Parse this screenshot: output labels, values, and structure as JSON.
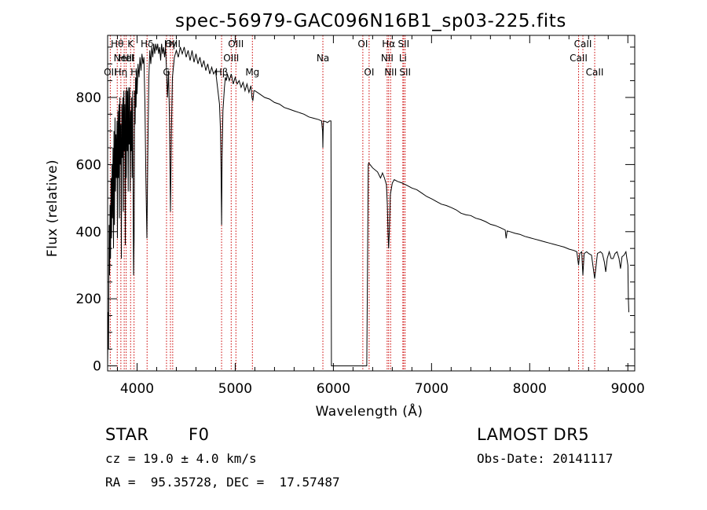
{
  "chart_data": {
    "type": "line",
    "title": "spec-56979-GAC096N16B1_sp03-225.fits",
    "xlabel": "Wavelength (Å)",
    "ylabel": "Flux (relative)",
    "xlim": [
      3700,
      9070
    ],
    "ylim": [
      -15,
      985
    ],
    "xticks": [
      4000,
      5000,
      6000,
      7000,
      8000,
      9000
    ],
    "yticks": [
      0,
      200,
      400,
      600,
      800
    ],
    "x_minor_step": 200,
    "y_minor_step": 50,
    "grid": false,
    "series": [
      {
        "values": [
          [
            3700,
            0
          ],
          [
            3705,
            160
          ],
          [
            3710,
            50
          ],
          [
            3715,
            420
          ],
          [
            3720,
            270
          ],
          [
            3725,
            480
          ],
          [
            3730,
            320
          ],
          [
            3735,
            560
          ],
          [
            3740,
            380
          ],
          [
            3745,
            600
          ],
          [
            3750,
            440
          ],
          [
            3755,
            650
          ],
          [
            3760,
            350
          ],
          [
            3765,
            700
          ],
          [
            3770,
            420
          ],
          [
            3775,
            740
          ],
          [
            3780,
            520
          ],
          [
            3785,
            690
          ],
          [
            3790,
            560
          ],
          [
            3795,
            730
          ],
          [
            3800,
            380
          ],
          [
            3805,
            760
          ],
          [
            3810,
            560
          ],
          [
            3815,
            780
          ],
          [
            3820,
            440
          ],
          [
            3825,
            800
          ],
          [
            3830,
            600
          ],
          [
            3835,
            720
          ],
          [
            3840,
            320
          ],
          [
            3845,
            780
          ],
          [
            3850,
            620
          ],
          [
            3855,
            800
          ],
          [
            3860,
            460
          ],
          [
            3865,
            820
          ],
          [
            3870,
            640
          ],
          [
            3875,
            780
          ],
          [
            3880,
            360
          ],
          [
            3885,
            820
          ],
          [
            3890,
            560
          ],
          [
            3895,
            830
          ],
          [
            3900,
            640
          ],
          [
            3905,
            820
          ],
          [
            3910,
            520
          ],
          [
            3915,
            830
          ],
          [
            3920,
            660
          ],
          [
            3925,
            830
          ],
          [
            3930,
            520
          ],
          [
            3935,
            760
          ],
          [
            3940,
            640
          ],
          [
            3945,
            800
          ],
          [
            3950,
            560
          ],
          [
            3955,
            820
          ],
          [
            3960,
            500
          ],
          [
            3965,
            270
          ],
          [
            3970,
            380
          ],
          [
            3975,
            820
          ],
          [
            3980,
            720
          ],
          [
            3985,
            860
          ],
          [
            3990,
            770
          ],
          [
            3995,
            880
          ],
          [
            4000,
            810
          ],
          [
            4010,
            900
          ],
          [
            4020,
            860
          ],
          [
            4030,
            920
          ],
          [
            4040,
            880
          ],
          [
            4050,
            930
          ],
          [
            4060,
            900
          ],
          [
            4070,
            920
          ],
          [
            4080,
            780
          ],
          [
            4090,
            560
          ],
          [
            4100,
            380
          ],
          [
            4110,
            640
          ],
          [
            4120,
            860
          ],
          [
            4130,
            940
          ],
          [
            4140,
            900
          ],
          [
            4150,
            950
          ],
          [
            4160,
            920
          ],
          [
            4170,
            960
          ],
          [
            4180,
            930
          ],
          [
            4190,
            960
          ],
          [
            4200,
            940
          ],
          [
            4210,
            960
          ],
          [
            4220,
            930
          ],
          [
            4230,
            950
          ],
          [
            4240,
            910
          ],
          [
            4250,
            960
          ],
          [
            4260,
            930
          ],
          [
            4270,
            950
          ],
          [
            4280,
            920
          ],
          [
            4290,
            950
          ],
          [
            4300,
            880
          ],
          [
            4310,
            800
          ],
          [
            4320,
            880
          ],
          [
            4330,
            740
          ],
          [
            4340,
            460
          ],
          [
            4350,
            700
          ],
          [
            4360,
            860
          ],
          [
            4380,
            920
          ],
          [
            4400,
            940
          ],
          [
            4420,
            920
          ],
          [
            4440,
            950
          ],
          [
            4460,
            930
          ],
          [
            4480,
            950
          ],
          [
            4500,
            920
          ],
          [
            4520,
            940
          ],
          [
            4540,
            910
          ],
          [
            4560,
            940
          ],
          [
            4580,
            905
          ],
          [
            4600,
            930
          ],
          [
            4620,
            900
          ],
          [
            4640,
            920
          ],
          [
            4660,
            890
          ],
          [
            4680,
            910
          ],
          [
            4700,
            880
          ],
          [
            4720,
            900
          ],
          [
            4740,
            870
          ],
          [
            4760,
            890
          ],
          [
            4780,
            870
          ],
          [
            4800,
            880
          ],
          [
            4820,
            830
          ],
          [
            4840,
            780
          ],
          [
            4850,
            700
          ],
          [
            4855,
            600
          ],
          [
            4861,
            420
          ],
          [
            4866,
            620
          ],
          [
            4875,
            760
          ],
          [
            4890,
            830
          ],
          [
            4900,
            860
          ],
          [
            4910,
            850
          ],
          [
            4920,
            870
          ],
          [
            4940,
            850
          ],
          [
            4960,
            870
          ],
          [
            4980,
            840
          ],
          [
            5000,
            860
          ],
          [
            5020,
            840
          ],
          [
            5040,
            850
          ],
          [
            5060,
            830
          ],
          [
            5080,
            845
          ],
          [
            5100,
            820
          ],
          [
            5120,
            840
          ],
          [
            5140,
            815
          ],
          [
            5160,
            835
          ],
          [
            5170,
            800
          ],
          [
            5180,
            790
          ],
          [
            5190,
            820
          ],
          [
            5200,
            820
          ],
          [
            5250,
            810
          ],
          [
            5300,
            800
          ],
          [
            5350,
            795
          ],
          [
            5400,
            785
          ],
          [
            5450,
            780
          ],
          [
            5500,
            770
          ],
          [
            5550,
            765
          ],
          [
            5600,
            760
          ],
          [
            5650,
            755
          ],
          [
            5700,
            750
          ],
          [
            5750,
            742
          ],
          [
            5800,
            738
          ],
          [
            5850,
            734
          ],
          [
            5880,
            730
          ],
          [
            5890,
            700
          ],
          [
            5893,
            650
          ],
          [
            5896,
            700
          ],
          [
            5900,
            730
          ],
          [
            5920,
            728
          ],
          [
            5940,
            725
          ],
          [
            5960,
            730
          ],
          [
            5975,
            730
          ],
          [
            5980,
            0
          ],
          [
            6340,
            0
          ],
          [
            6355,
            600
          ],
          [
            6360,
            605
          ],
          [
            6400,
            590
          ],
          [
            6450,
            578
          ],
          [
            6480,
            560
          ],
          [
            6500,
            575
          ],
          [
            6520,
            560
          ],
          [
            6540,
            540
          ],
          [
            6550,
            480
          ],
          [
            6556,
            400
          ],
          [
            6563,
            350
          ],
          [
            6570,
            400
          ],
          [
            6580,
            510
          ],
          [
            6600,
            545
          ],
          [
            6620,
            555
          ],
          [
            6650,
            550
          ],
          [
            6700,
            545
          ],
          [
            6750,
            538
          ],
          [
            6800,
            530
          ],
          [
            6850,
            525
          ],
          [
            6900,
            515
          ],
          [
            6950,
            505
          ],
          [
            7000,
            498
          ],
          [
            7050,
            490
          ],
          [
            7100,
            482
          ],
          [
            7150,
            478
          ],
          [
            7200,
            472
          ],
          [
            7250,
            465
          ],
          [
            7300,
            455
          ],
          [
            7350,
            450
          ],
          [
            7400,
            448
          ],
          [
            7450,
            440
          ],
          [
            7500,
            436
          ],
          [
            7550,
            430
          ],
          [
            7600,
            422
          ],
          [
            7650,
            418
          ],
          [
            7700,
            412
          ],
          [
            7750,
            405
          ],
          [
            7760,
            380
          ],
          [
            7770,
            402
          ],
          [
            7800,
            400
          ],
          [
            7850,
            395
          ],
          [
            7900,
            392
          ],
          [
            7950,
            386
          ],
          [
            8000,
            382
          ],
          [
            8050,
            378
          ],
          [
            8100,
            374
          ],
          [
            8150,
            370
          ],
          [
            8200,
            366
          ],
          [
            8250,
            362
          ],
          [
            8300,
            358
          ],
          [
            8350,
            354
          ],
          [
            8400,
            348
          ],
          [
            8450,
            344
          ],
          [
            8480,
            340
          ],
          [
            8498,
            300
          ],
          [
            8510,
            335
          ],
          [
            8530,
            340
          ],
          [
            8542,
            270
          ],
          [
            8555,
            335
          ],
          [
            8580,
            340
          ],
          [
            8600,
            335
          ],
          [
            8630,
            330
          ],
          [
            8662,
            260
          ],
          [
            8690,
            335
          ],
          [
            8720,
            340
          ],
          [
            8740,
            335
          ],
          [
            8760,
            310
          ],
          [
            8775,
            280
          ],
          [
            8790,
            320
          ],
          [
            8810,
            340
          ],
          [
            8830,
            320
          ],
          [
            8850,
            320
          ],
          [
            8870,
            335
          ],
          [
            8890,
            340
          ],
          [
            8910,
            320
          ],
          [
            8925,
            290
          ],
          [
            8940,
            325
          ],
          [
            8960,
            330
          ],
          [
            8980,
            340
          ],
          [
            8990,
            320
          ],
          [
            9000,
            300
          ],
          [
            9005,
            200
          ],
          [
            9010,
            160
          ]
        ]
      }
    ],
    "line_color": "#000000",
    "marker_color": "#cc0000",
    "lines": [
      {
        "x": 3727,
        "labels": [
          "OII"
        ],
        "rows": [
          2
        ]
      },
      {
        "x": 3798,
        "labels": [
          "Hθ"
        ],
        "rows": [
          0
        ]
      },
      {
        "x": 3835,
        "labels": [
          "Hη"
        ],
        "rows": [
          2
        ]
      },
      {
        "x": 3869,
        "labels": [
          "NeIII"
        ],
        "rows": [
          1
        ]
      },
      {
        "x": 3889,
        "labels": [
          "HeI"
        ],
        "rows": [
          1
        ]
      },
      {
        "x": 3934,
        "labels": [
          "K"
        ],
        "rows": [
          0
        ]
      },
      {
        "x": 3969,
        "labels": [
          "H"
        ],
        "rows": [
          2
        ]
      },
      {
        "x": 4102,
        "labels": [
          "Hδ"
        ],
        "rows": [
          0
        ]
      },
      {
        "x": 4300,
        "labels": [
          "G"
        ],
        "rows": [
          2
        ]
      },
      {
        "x": 4340,
        "labels": [
          "Hγ"
        ],
        "rows": [
          0
        ]
      },
      {
        "x": 4363,
        "labels": [
          "OIII"
        ],
        "rows": [
          0
        ]
      },
      {
        "x": 4861,
        "labels": [
          "Hβ"
        ],
        "rows": [
          2
        ]
      },
      {
        "x": 4959,
        "labels": [
          "OIII"
        ],
        "rows": [
          1
        ]
      },
      {
        "x": 5007,
        "labels": [
          "OIII"
        ],
        "rows": [
          0
        ]
      },
      {
        "x": 5175,
        "labels": [
          "Mg"
        ],
        "rows": [
          2
        ]
      },
      {
        "x": 5893,
        "labels": [
          "Na"
        ],
        "rows": [
          1
        ]
      },
      {
        "x": 6300,
        "labels": [
          "OI"
        ],
        "rows": [
          0
        ]
      },
      {
        "x": 6364,
        "labels": [
          "OI"
        ],
        "rows": [
          2
        ]
      },
      {
        "x": 6548,
        "labels": [
          "NII"
        ],
        "rows": [
          1
        ]
      },
      {
        "x": 6563,
        "labels": [
          "Hα"
        ],
        "rows": [
          0
        ]
      },
      {
        "x": 6583,
        "labels": [
          "NII"
        ],
        "rows": [
          2
        ]
      },
      {
        "x": 6708,
        "labels": [
          "Li"
        ],
        "rows": [
          1
        ]
      },
      {
        "x": 6716,
        "labels": [
          "SII"
        ],
        "rows": [
          0
        ]
      },
      {
        "x": 6731,
        "labels": [
          "SII"
        ],
        "rows": [
          2
        ]
      },
      {
        "x": 8498,
        "labels": [
          "CaII"
        ],
        "rows": [
          1
        ]
      },
      {
        "x": 8542,
        "labels": [
          "CaII"
        ],
        "rows": [
          0
        ]
      },
      {
        "x": 8662,
        "labels": [
          "CaII"
        ],
        "rows": [
          2
        ]
      }
    ]
  },
  "info": {
    "object_class": "STAR",
    "subclass": "F0",
    "survey": "LAMOST DR5",
    "cz": "cz = 19.0 ± 4.0 km/s",
    "obs_date": "Obs-Date: 20141117",
    "radec": "RA =  95.35728, DEC =  17.57487"
  }
}
